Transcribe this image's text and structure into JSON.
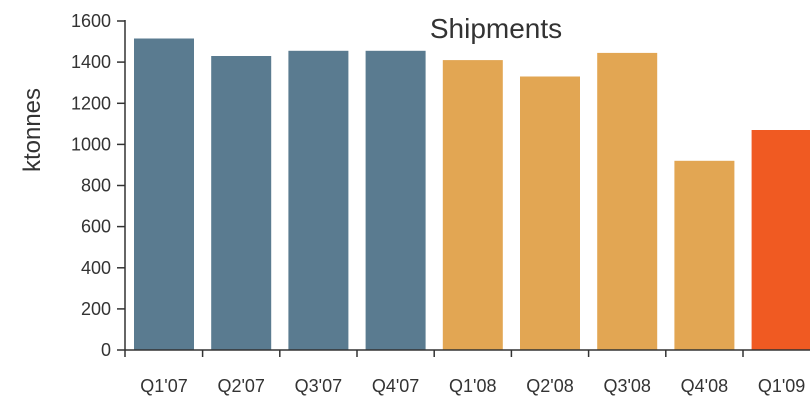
{
  "chart_data": {
    "type": "bar",
    "title": "Shipments",
    "xlabel": "",
    "ylabel": "ktonnes",
    "ylim": [
      0,
      1600
    ],
    "yticks": [
      0,
      200,
      400,
      600,
      800,
      1000,
      1200,
      1400,
      1600
    ],
    "grid": false,
    "categories": [
      "Q1'07",
      "Q2'07",
      "Q3'07",
      "Q4'07",
      "Q1'08",
      "Q2'08",
      "Q3'08",
      "Q4'08",
      "Q1'09"
    ],
    "values": [
      1515,
      1430,
      1455,
      1455,
      1410,
      1330,
      1445,
      920,
      1070
    ],
    "colors": [
      "#5a7b90",
      "#5a7b90",
      "#5a7b90",
      "#5a7b90",
      "#e2a653",
      "#e2a653",
      "#e2a653",
      "#e2a653",
      "#f05a22"
    ]
  }
}
